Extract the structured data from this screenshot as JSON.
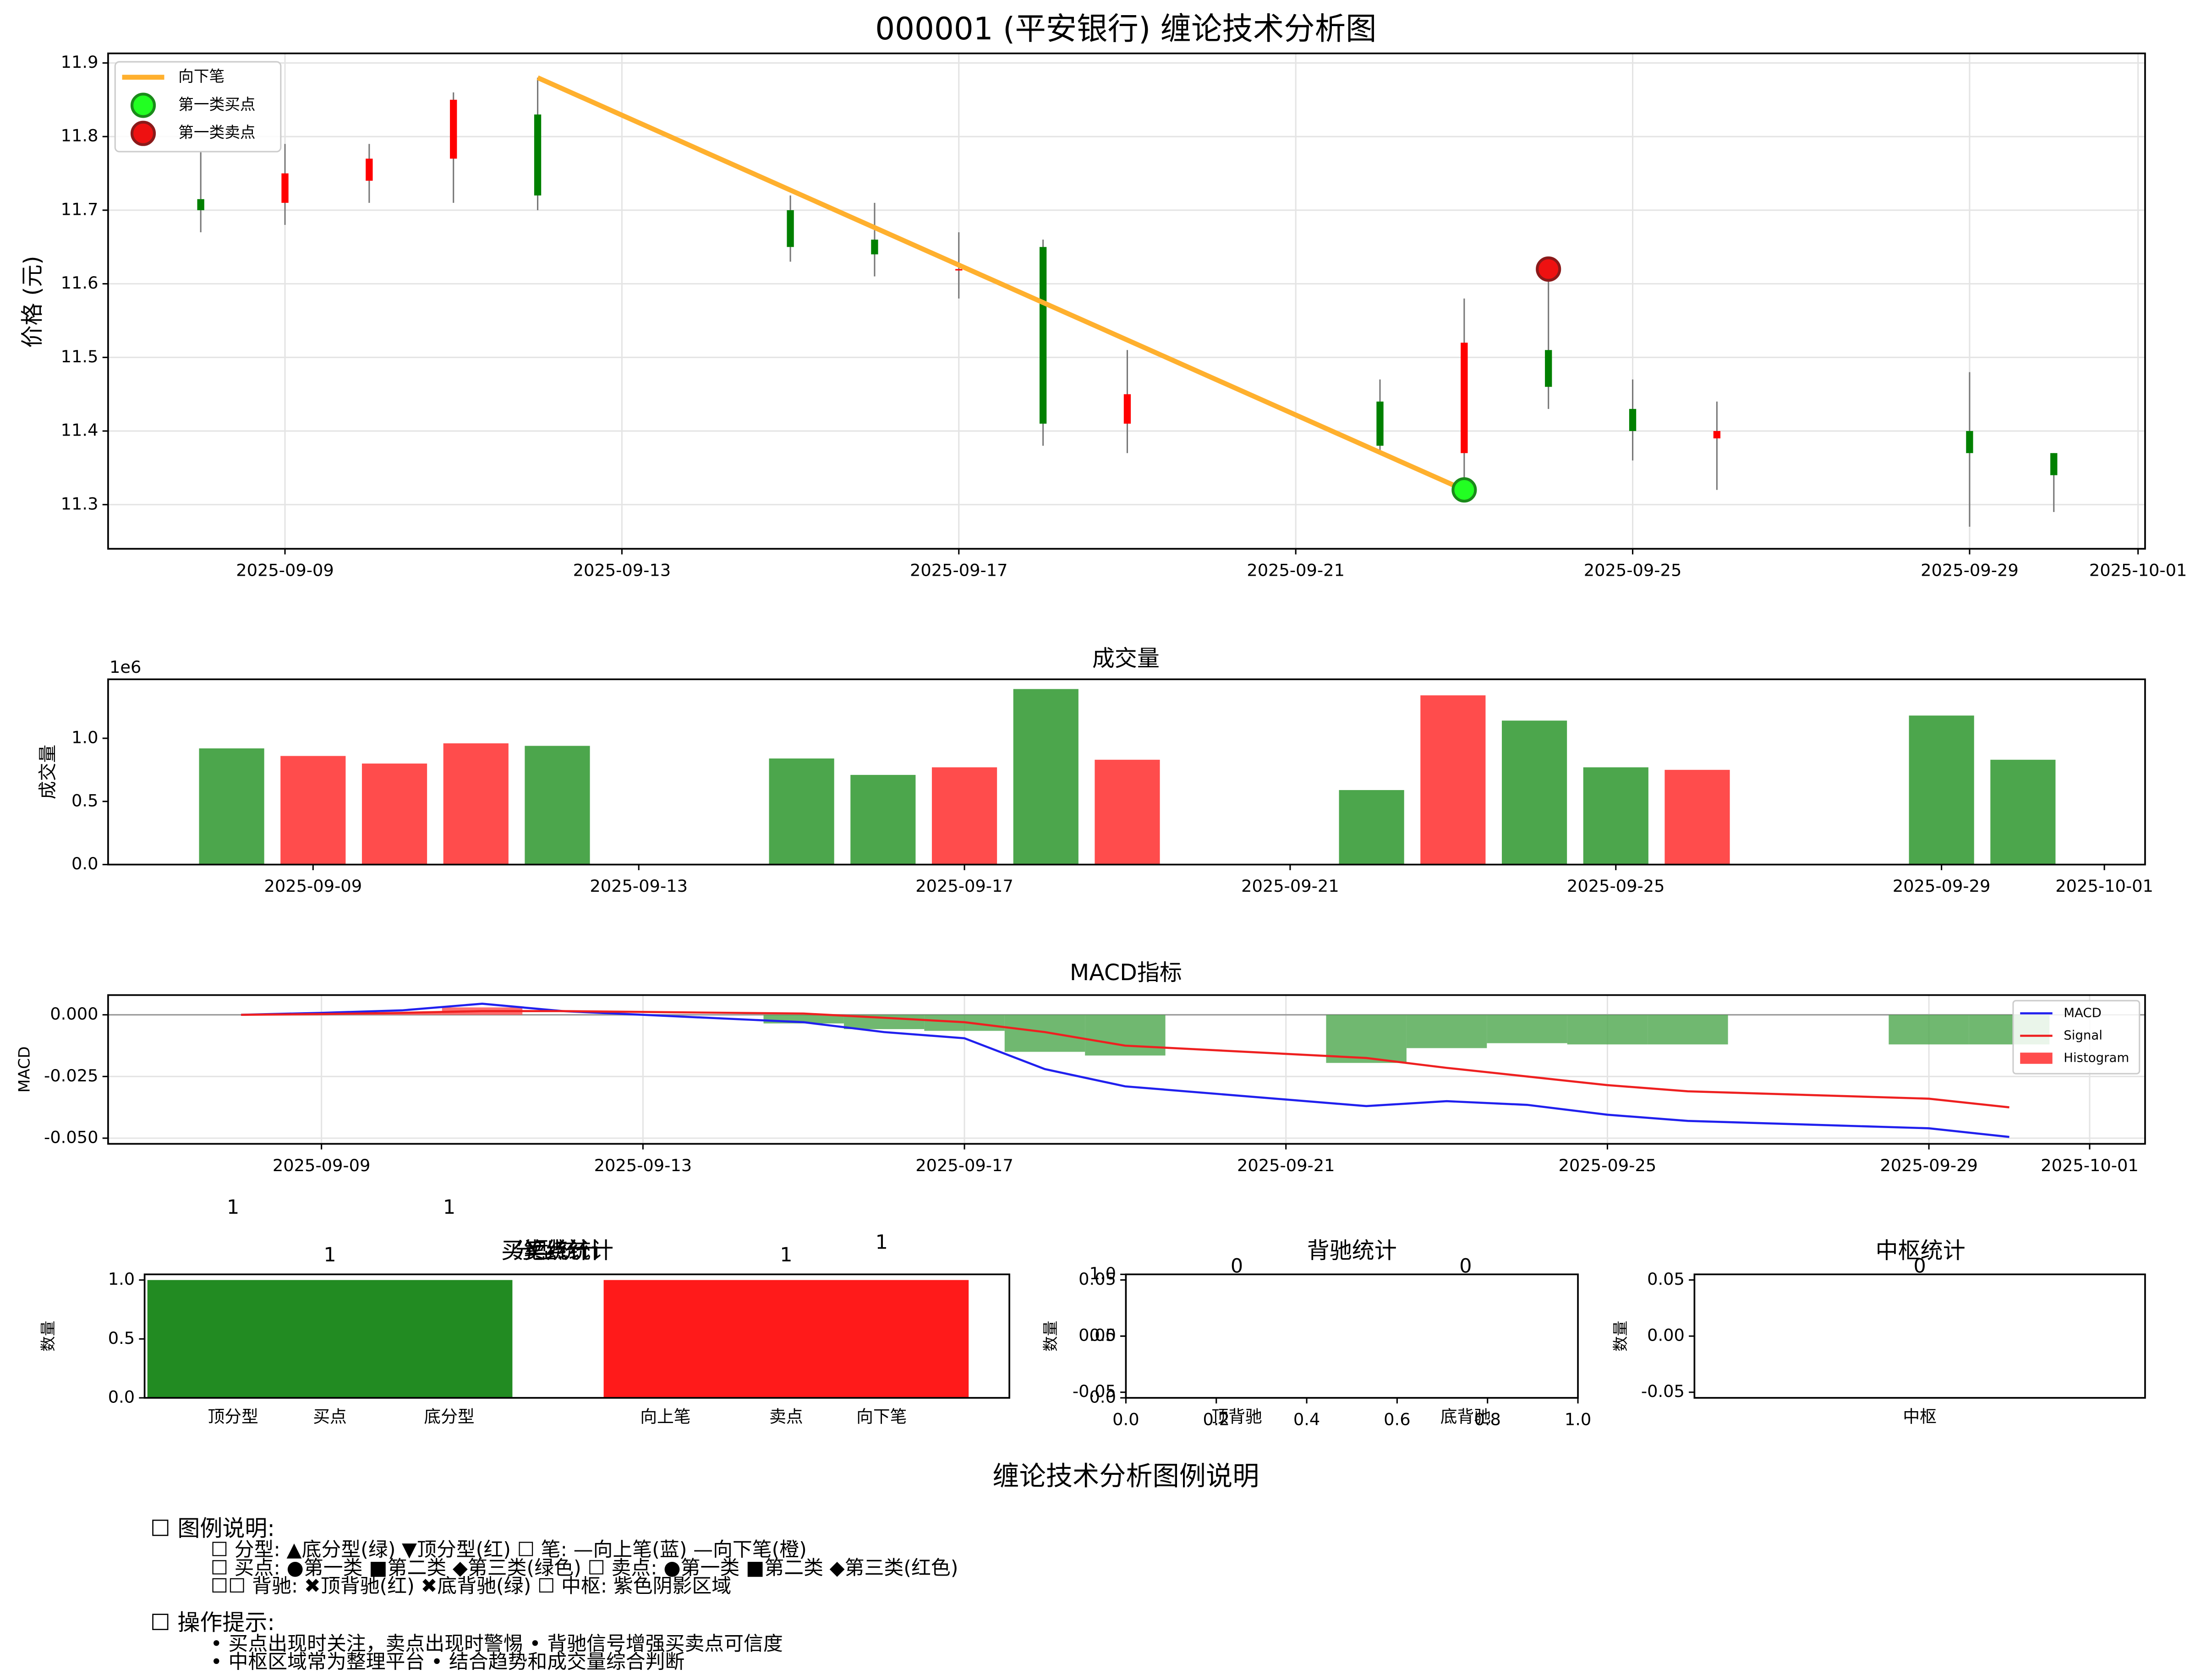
{
  "chart_data": [
    {
      "type": "candlestick",
      "title": "000001 (平安银行) 缠论技术分析图",
      "ylabel": "价格 (元)",
      "x": [
        "2025-09-08",
        "2025-09-09",
        "2025-09-10",
        "2025-09-11",
        "2025-09-12",
        "2025-09-15",
        "2025-09-16",
        "2025-09-17",
        "2025-09-18",
        "2025-09-19",
        "2025-09-22",
        "2025-09-23",
        "2025-09-24",
        "2025-09-25",
        "2025-09-26",
        "2025-09-29",
        "2025-09-30"
      ],
      "open": [
        11.715,
        11.71,
        11.74,
        11.77,
        11.83,
        11.7,
        11.66,
        11.62,
        11.65,
        11.41,
        11.44,
        11.37,
        11.51,
        11.43,
        11.39,
        11.4,
        11.37
      ],
      "high": [
        11.78,
        11.79,
        11.79,
        11.86,
        11.88,
        11.72,
        11.71,
        11.67,
        11.66,
        11.51,
        11.47,
        11.58,
        11.63,
        11.47,
        11.44,
        11.48,
        11.37
      ],
      "low": [
        11.67,
        11.68,
        11.71,
        11.71,
        11.7,
        11.63,
        11.61,
        11.58,
        11.38,
        11.37,
        11.37,
        11.31,
        11.43,
        11.36,
        11.32,
        11.27,
        11.29
      ],
      "close": [
        11.7,
        11.75,
        11.77,
        11.85,
        11.72,
        11.65,
        11.64,
        11.62,
        11.41,
        11.45,
        11.38,
        11.52,
        11.46,
        11.4,
        11.4,
        11.37,
        11.34
      ],
      "up_color": "#ff0000",
      "down_color": "#008000",
      "xlim": [
        "2025-09-06T21:36",
        "2025-10-01T02:00"
      ],
      "xticks": [
        "2025-09-09",
        "2025-09-13",
        "2025-09-17",
        "2025-09-21",
        "2025-09-25",
        "2025-09-29",
        "2025-10-01"
      ],
      "ylim": [
        11.24,
        11.913
      ],
      "yticks": [
        11.3,
        11.4,
        11.5,
        11.6,
        11.7,
        11.8,
        11.9
      ],
      "grid": true,
      "strokes": [
        {
          "name": "向下笔",
          "color": "#ffb02e",
          "x": [
            "2025-09-12",
            "2025-09-23"
          ],
          "values": [
            11.88,
            11.32
          ]
        }
      ],
      "points": [
        {
          "name": "第一类买点",
          "color": "#22ff22",
          "edge": "#1a8a1a",
          "x": [
            "2025-09-23"
          ],
          "values": [
            11.32
          ]
        },
        {
          "name": "第一类卖点",
          "color": "#ee1111",
          "edge": "#8a1a1a",
          "x": [
            "2025-09-24"
          ],
          "values": [
            11.62
          ]
        }
      ],
      "legend": "upper left"
    },
    {
      "type": "bar",
      "title": "成交量",
      "ylabel": "成交量",
      "offset_label": "1e6",
      "x": [
        "2025-09-08",
        "2025-09-09",
        "2025-09-10",
        "2025-09-11",
        "2025-09-12",
        "2025-09-15",
        "2025-09-16",
        "2025-09-17",
        "2025-09-18",
        "2025-09-19",
        "2025-09-22",
        "2025-09-23",
        "2025-09-24",
        "2025-09-25",
        "2025-09-26",
        "2025-09-29",
        "2025-09-30"
      ],
      "values": [
        0.92,
        0.86,
        0.8,
        0.96,
        0.94,
        0.84,
        0.71,
        0.77,
        1.39,
        0.83,
        0.59,
        1.34,
        1.14,
        0.77,
        0.75,
        1.18,
        0.83
      ],
      "colors": [
        "#4ca64c",
        "#ff4c4c",
        "#ff4c4c",
        "#ff4c4c",
        "#4ca64c",
        "#4ca64c",
        "#4ca64c",
        "#ff4c4c",
        "#4ca64c",
        "#ff4c4c",
        "#4ca64c",
        "#ff4c4c",
        "#4ca64c",
        "#4ca64c",
        "#ff4c4c",
        "#4ca64c",
        "#4ca64c"
      ],
      "xlim": [
        "2025-09-06T11:35",
        "2025-10-01T12:00"
      ],
      "xticks": [
        "2025-09-09",
        "2025-09-13",
        "2025-09-17",
        "2025-09-21",
        "2025-09-25",
        "2025-09-29",
        "2025-10-01"
      ],
      "ylim": [
        0,
        1.467
      ],
      "yticks": [
        {
          "value": 0,
          "label": "0.0"
        },
        {
          "value": 0.5,
          "label": "0.5"
        },
        {
          "value": 1,
          "label": "1.0"
        }
      ]
    },
    {
      "type": "line",
      "title": "MACD指标",
      "ylabel": "MACD",
      "x": [
        "2025-09-08",
        "2025-09-09",
        "2025-09-10",
        "2025-09-11",
        "2025-09-12",
        "2025-09-15",
        "2025-09-16",
        "2025-09-17",
        "2025-09-18",
        "2025-09-19",
        "2025-09-22",
        "2025-09-23",
        "2025-09-24",
        "2025-09-25",
        "2025-09-26",
        "2025-09-29",
        "2025-09-30"
      ],
      "series": [
        {
          "name": "MACD",
          "color": "#2020ee",
          "values": [
            0,
            0.0008,
            0.0018,
            0.0045,
            0.0015,
            -0.003,
            -0.007,
            -0.0095,
            -0.022,
            -0.029,
            -0.037,
            -0.035,
            -0.0365,
            -0.0405,
            -0.043,
            -0.046,
            -0.0495
          ]
        },
        {
          "name": "Signal",
          "color": "#ee2020",
          "values": [
            0,
            0.0003,
            0.0008,
            0.0015,
            0.0015,
            0.0005,
            -0.0012,
            -0.003,
            -0.007,
            -0.0125,
            -0.0175,
            -0.0215,
            -0.025,
            -0.0285,
            -0.031,
            -0.034,
            -0.0375
          ]
        }
      ],
      "histogram": {
        "name": "Histogram",
        "values": [
          0,
          0.0005,
          0.001,
          0.003,
          0,
          -0.0035,
          -0.0058,
          -0.0065,
          -0.015,
          -0.0165,
          -0.0195,
          -0.0135,
          -0.0115,
          -0.012,
          -0.012,
          -0.012,
          -0.012
        ],
        "up_color": "#ff4c4c",
        "down_color": "#4ca64c"
      },
      "xlim": [
        "2025-09-06T08:17",
        "2025-10-01T16:33"
      ],
      "xticks": [
        "2025-09-09",
        "2025-09-13",
        "2025-09-17",
        "2025-09-21",
        "2025-09-25",
        "2025-09-29",
        "2025-10-01"
      ],
      "ylim": [
        -0.0523,
        0.008
      ],
      "yticks": [
        {
          "value": 0,
          "label": "0.000"
        },
        {
          "value": -0.025,
          "label": "-0.025"
        },
        {
          "value": -0.05,
          "label": "-0.050"
        }
      ],
      "grid": true,
      "legend": "upper right"
    },
    {
      "type": "bar",
      "title": "买卖点统计",
      "overlaid_titles": [
        "分型统计",
        "笔统计"
      ],
      "ylabel": "数量",
      "categories": [
        "买点",
        "卖点"
      ],
      "values": [
        1,
        1
      ],
      "colors": [
        "#228b22",
        "#ff1a1a"
      ],
      "extra_ticks": [
        "顶分型",
        "底分型",
        "向上笔",
        "向下笔"
      ],
      "annotations": [
        "1",
        "1",
        "1"
      ],
      "ylim": [
        0,
        1.048
      ],
      "yticks": [
        {
          "value": 0,
          "label": "0.0"
        },
        {
          "value": 0.5,
          "label": "0.5"
        },
        {
          "value": 1,
          "label": "1.0"
        }
      ]
    },
    {
      "type": "bar",
      "title": "背驰统计",
      "ylabel": "数量",
      "categories": [
        "顶背驰",
        "底背驰"
      ],
      "values": [
        0,
        0
      ],
      "color": "#999999",
      "ylim": [
        -0.055,
        0.055
      ],
      "yticks": [
        -0.05,
        {
          "value": 0,
          "label": "0.00"
        },
        0.05
      ],
      "y2lim": [
        0,
        1
      ],
      "y2ticks": [
        {
          "value": 0,
          "label": "0.0"
        },
        {
          "value": 0.5,
          "label": "0.5"
        },
        {
          "value": 1,
          "label": "1.0"
        }
      ],
      "xlim": [
        0,
        1
      ],
      "xticks": [
        {
          "value": 0,
          "label": "0.0"
        },
        {
          "value": 0.2,
          "label": "0.2"
        },
        {
          "value": 0.4,
          "label": "0.4"
        },
        {
          "value": 0.6,
          "label": "0.6"
        },
        {
          "value": 0.8,
          "label": "0.8"
        },
        {
          "value": 1,
          "label": "1.0"
        }
      ]
    },
    {
      "type": "bar",
      "title": "中枢统计",
      "ylabel": "数量",
      "categories": [
        "中枢"
      ],
      "values": [
        0
      ],
      "color": "#800080",
      "ylim": [
        -0.055,
        0.055
      ],
      "yticks": [
        -0.05,
        {
          "value": 0,
          "label": "0.00"
        },
        0.05
      ]
    }
  ],
  "notes": {
    "title": "缠论技术分析图例说明",
    "sections": [
      {
        "heading": "☐ 图例说明:",
        "lines": [
          "☐ 分型: ▲底分型(绿) ▼顶分型(红)  ☐ 笔: —向上笔(蓝) —向下笔(橙)",
          "☐ 买点: ●第一类 ■第二类 ◆第三类(绿色)  ☐ 卖点: ●第一类 ■第二类 ◆第三类(红色)",
          "☐☐ 背驰: ✖顶背驰(红) ✖底背驰(绿)  ☐ 中枢: 紫色阴影区域"
        ]
      },
      {
        "heading": "☐ 操作提示:",
        "lines": [
          "• 买点出现时关注，卖点出现时警惕 • 背驰信号增强买卖点可信度",
          "• 中枢区域常为整理平台 • 结合趋势和成交量综合判断"
        ]
      }
    ]
  }
}
